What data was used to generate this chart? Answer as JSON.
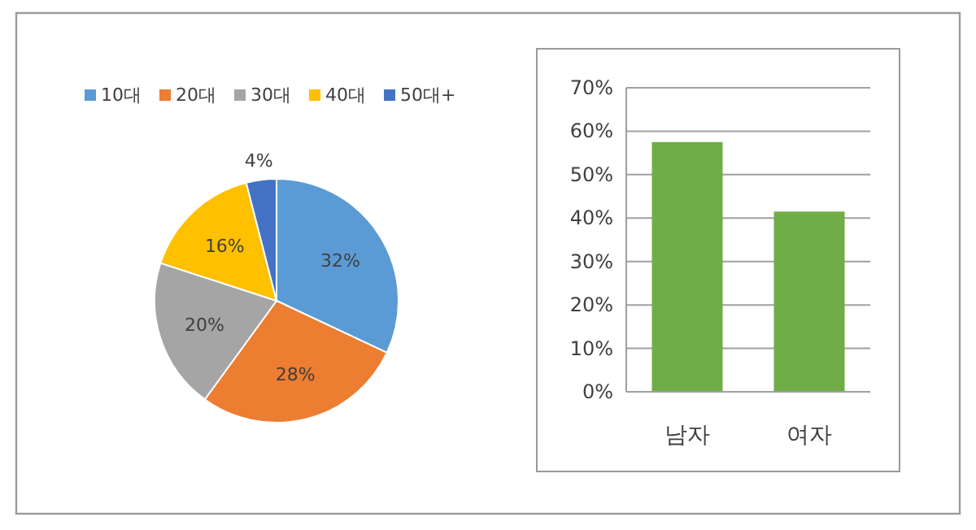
{
  "chart_data": [
    {
      "type": "pie",
      "categories": [
        "10대",
        "20대",
        "30대",
        "40대",
        "50대+"
      ],
      "values": [
        32,
        28,
        20,
        16,
        4
      ],
      "colors": [
        "#5b9bd5",
        "#ed7d31",
        "#a5a5a5",
        "#ffc000",
        "#4472c4"
      ],
      "value_labels": [
        "32%",
        "28%",
        "20%",
        "16%",
        "4%"
      ],
      "legend": "top"
    },
    {
      "type": "bar",
      "categories": [
        "남자",
        "여자"
      ],
      "values": [
        57.5,
        41.5
      ],
      "color": "#70ad47",
      "ylim": [
        0,
        70
      ],
      "yticks": [
        {
          "value": 0,
          "label": "0%"
        },
        {
          "value": 10,
          "label": "10%"
        },
        {
          "value": 20,
          "label": "20%"
        },
        {
          "value": 30,
          "label": "30%"
        },
        {
          "value": 40,
          "label": "40%"
        },
        {
          "value": 50,
          "label": "50%"
        },
        {
          "value": 60,
          "label": "60%"
        },
        {
          "value": 70,
          "label": "70%"
        }
      ],
      "grid": "y"
    }
  ]
}
